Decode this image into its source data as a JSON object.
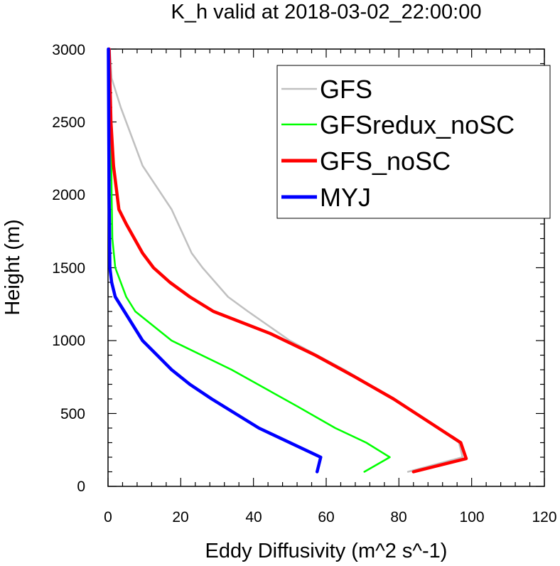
{
  "chart_data": {
    "type": "line",
    "title": "K_h valid at 2018-03-02_22:00:00",
    "xlabel": "Eddy Diffusivity (m^2 s^-1)",
    "ylabel": "Height (m)",
    "xlim": [
      0,
      120
    ],
    "ylim": [
      0,
      3000
    ],
    "xticks": [
      "0",
      "20",
      "40",
      "60",
      "80",
      "100",
      "120"
    ],
    "yticks": [
      "0",
      "500",
      "1000",
      "1500",
      "2000",
      "2500",
      "3000"
    ],
    "grid": false,
    "legend_position": "top-right",
    "series": [
      {
        "name": "GFS",
        "color": "#c0c0c0",
        "line_width": "thin",
        "points": [
          [
            82.5,
            100
          ],
          [
            97.5,
            200
          ],
          [
            96.5,
            300
          ],
          [
            78.5,
            600
          ],
          [
            65,
            800
          ],
          [
            50,
            1000
          ],
          [
            38.5,
            1200
          ],
          [
            33,
            1300
          ],
          [
            26,
            1500
          ],
          [
            23,
            1600
          ],
          [
            17.5,
            1900
          ],
          [
            9.5,
            2200
          ],
          [
            3.5,
            2600
          ],
          [
            1,
            2800
          ],
          [
            0.5,
            3000
          ]
        ]
      },
      {
        "name": "GFSredux_noSC",
        "color": "#00ff00",
        "line_width": "thin",
        "points": [
          [
            70.5,
            100
          ],
          [
            77.5,
            200
          ],
          [
            71,
            300
          ],
          [
            62.5,
            400
          ],
          [
            52,
            550
          ],
          [
            34,
            800
          ],
          [
            17.5,
            1000
          ],
          [
            7.5,
            1200
          ],
          [
            5,
            1300
          ],
          [
            2,
            1500
          ],
          [
            1.2,
            1700
          ],
          [
            1,
            2000
          ],
          [
            0.8,
            2500
          ],
          [
            0.6,
            2800
          ],
          [
            0.4,
            3000
          ]
        ]
      },
      {
        "name": "GFS_noSC",
        "color": "#ff0000",
        "line_width": "thick",
        "points": [
          [
            84,
            100
          ],
          [
            98.5,
            190
          ],
          [
            97,
            300
          ],
          [
            78.5,
            600
          ],
          [
            68,
            750
          ],
          [
            57,
            900
          ],
          [
            44.5,
            1050
          ],
          [
            29,
            1200
          ],
          [
            22.5,
            1300
          ],
          [
            17,
            1400
          ],
          [
            12.5,
            1500
          ],
          [
            9.5,
            1600
          ],
          [
            5,
            1800
          ],
          [
            3,
            1900
          ],
          [
            1.5,
            2200
          ],
          [
            0.8,
            2500
          ],
          [
            0.5,
            2800
          ],
          [
            0.3,
            3000
          ]
        ]
      },
      {
        "name": "MYJ",
        "color": "#0000ff",
        "line_width": "thick",
        "points": [
          [
            57.5,
            100
          ],
          [
            58.5,
            200
          ],
          [
            41.5,
            400
          ],
          [
            28.5,
            600
          ],
          [
            22.5,
            700
          ],
          [
            17.5,
            800
          ],
          [
            13.5,
            900
          ],
          [
            9.5,
            1000
          ],
          [
            4.5,
            1200
          ],
          [
            2,
            1300
          ],
          [
            1,
            1400
          ],
          [
            0.5,
            1500
          ],
          [
            0.3,
            2000
          ],
          [
            0.2,
            2500
          ],
          [
            0.1,
            3000
          ]
        ]
      }
    ]
  }
}
